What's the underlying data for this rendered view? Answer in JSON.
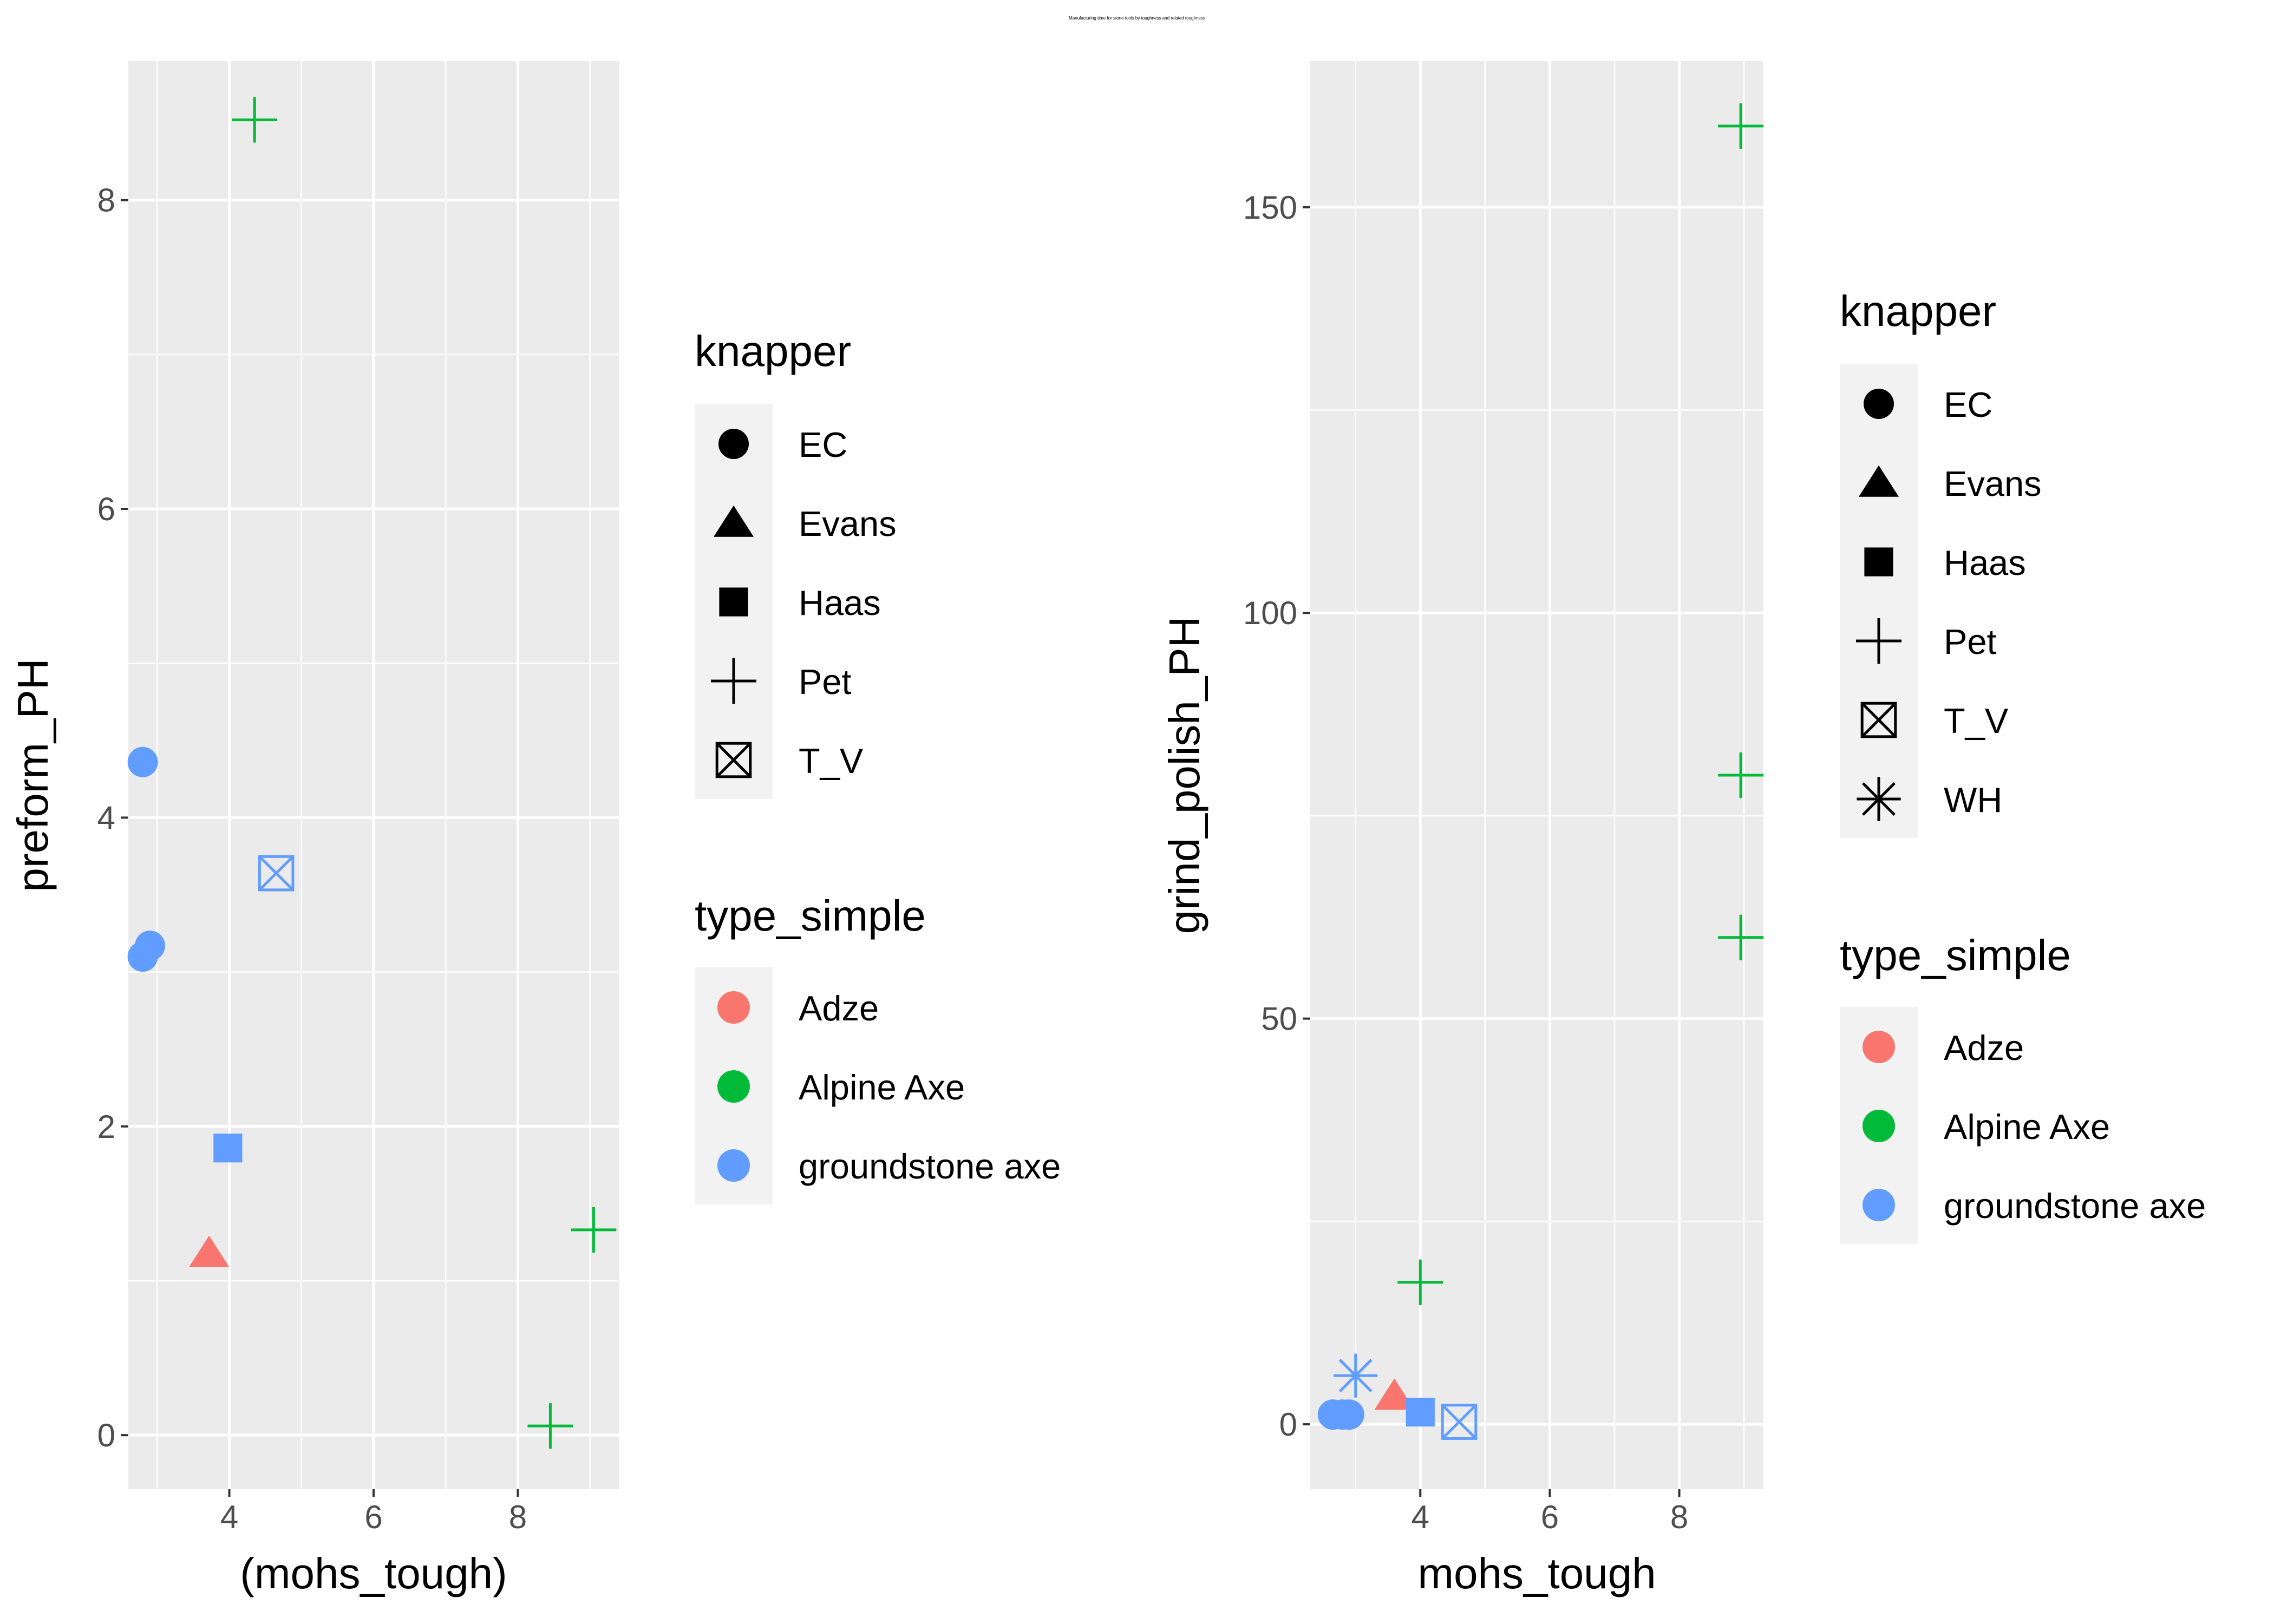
{
  "figure_title": "Manufacturing time for stone tools by toughness and related toughness",
  "colors": {
    "panel_bg": "#ebebeb",
    "grid": "#ffffff",
    "Adze": "#f8766d",
    "Alpine Axe": "#00ba38",
    "groundstone axe": "#619cff"
  },
  "chart_data": [
    {
      "type": "scatter",
      "xlabel": "(mohs_tough)",
      "ylabel": "preform_PH",
      "xlim": [
        2.6,
        9.4
      ],
      "ylim": [
        -0.35,
        8.9
      ],
      "x_ticks": [
        4,
        6,
        8
      ],
      "y_ticks": [
        0,
        2,
        4,
        6,
        8
      ],
      "grid": true,
      "legends": [
        {
          "title": "knapper",
          "entries": [
            {
              "label": "EC",
              "shape": "circle"
            },
            {
              "label": "Evans",
              "shape": "triangle"
            },
            {
              "label": "Haas",
              "shape": "square"
            },
            {
              "label": "Pet",
              "shape": "plus"
            },
            {
              "label": "T_V",
              "shape": "boxx"
            }
          ]
        },
        {
          "title": "type_simple",
          "entries": [
            {
              "label": "Adze"
            },
            {
              "label": "Alpine Axe"
            },
            {
              "label": "groundstone axe"
            }
          ]
        }
      ],
      "points": [
        {
          "x": 4.35,
          "y": 8.52,
          "knapper": "Pet",
          "type": "Alpine Axe"
        },
        {
          "x": 2.8,
          "y": 4.36,
          "knapper": "EC",
          "type": "groundstone axe"
        },
        {
          "x": 4.65,
          "y": 3.64,
          "knapper": "T_V",
          "type": "groundstone axe"
        },
        {
          "x": 2.9,
          "y": 3.17,
          "knapper": "EC",
          "type": "groundstone axe"
        },
        {
          "x": 2.8,
          "y": 3.1,
          "knapper": "EC",
          "type": "groundstone axe"
        },
        {
          "x": 3.98,
          "y": 1.86,
          "knapper": "Haas",
          "type": "groundstone axe"
        },
        {
          "x": 3.72,
          "y": 1.18,
          "knapper": "Evans",
          "type": "Adze"
        },
        {
          "x": 9.05,
          "y": 1.33,
          "knapper": "Pet",
          "type": "Alpine Axe"
        },
        {
          "x": 8.45,
          "y": 0.06,
          "knapper": "Pet",
          "type": "Alpine Axe"
        }
      ]
    },
    {
      "type": "scatter",
      "xlabel": "mohs_tough",
      "ylabel": "grind_polish_PH",
      "xlim": [
        2.3,
        9.3
      ],
      "ylim": [
        -8,
        168
      ],
      "x_ticks": [
        4,
        6,
        8
      ],
      "y_ticks": [
        0,
        50,
        100,
        150
      ],
      "grid": true,
      "legends": [
        {
          "title": "knapper",
          "entries": [
            {
              "label": "EC",
              "shape": "circle"
            },
            {
              "label": "Evans",
              "shape": "triangle"
            },
            {
              "label": "Haas",
              "shape": "square"
            },
            {
              "label": "Pet",
              "shape": "plus"
            },
            {
              "label": "T_V",
              "shape": "boxx"
            },
            {
              "label": "WH",
              "shape": "star"
            }
          ]
        },
        {
          "title": "type_simple",
          "entries": [
            {
              "label": "Adze"
            },
            {
              "label": "Alpine Axe"
            },
            {
              "label": "groundstone axe"
            }
          ]
        }
      ],
      "points": [
        {
          "x": 8.95,
          "y": 160,
          "knapper": "Pet",
          "type": "Alpine Axe"
        },
        {
          "x": 8.95,
          "y": 80,
          "knapper": "Pet",
          "type": "Alpine Axe"
        },
        {
          "x": 8.95,
          "y": 60,
          "knapper": "Pet",
          "type": "Alpine Axe"
        },
        {
          "x": 4.0,
          "y": 17.5,
          "knapper": "Pet",
          "type": "Alpine Axe"
        },
        {
          "x": 3.0,
          "y": 6,
          "knapper": "WH",
          "type": "groundstone axe"
        },
        {
          "x": 3.6,
          "y": 3.5,
          "knapper": "Evans",
          "type": "Adze"
        },
        {
          "x": 4.0,
          "y": 1.5,
          "knapper": "Haas",
          "type": "groundstone axe"
        },
        {
          "x": 4.6,
          "y": 0.3,
          "knapper": "T_V",
          "type": "groundstone axe"
        },
        {
          "x": 2.65,
          "y": 1.2,
          "knapper": "EC",
          "type": "groundstone axe"
        },
        {
          "x": 2.8,
          "y": 1.2,
          "knapper": "EC",
          "type": "groundstone axe"
        },
        {
          "x": 2.9,
          "y": 1.2,
          "knapper": "EC",
          "type": "groundstone axe"
        }
      ]
    }
  ]
}
